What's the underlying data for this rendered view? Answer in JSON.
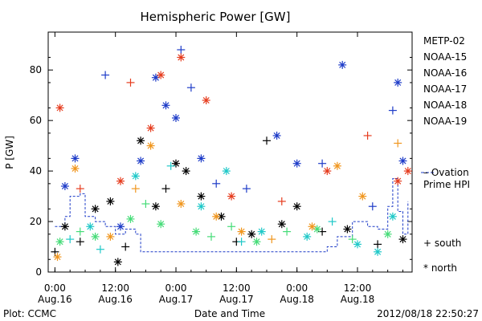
{
  "chart_data": {
    "type": "scatter",
    "title": "Hemispheric Power [GW]",
    "xlabel": "Date and Time",
    "ylabel": "P [GW]",
    "xlim": [
      "2012-08-15T22:40",
      "2012-08-18T22:50"
    ],
    "ylim": [
      0,
      95
    ],
    "y_ticks": [
      0,
      20,
      40,
      60,
      80
    ],
    "x_ticks": [
      {
        "time": "2012-08-16T00:00",
        "label": "0:00",
        "sublabel": "Aug.16"
      },
      {
        "time": "2012-08-16T12:00",
        "label": "12:00",
        "sublabel": "Aug.16"
      },
      {
        "time": "2012-08-17T00:00",
        "label": "0:00",
        "sublabel": "Aug.17"
      },
      {
        "time": "2012-08-17T12:00",
        "label": "12:00",
        "sublabel": "Aug.17"
      },
      {
        "time": "2012-08-18T00:00",
        "label": "0:00",
        "sublabel": "Aug.18"
      },
      {
        "time": "2012-08-18T12:00",
        "label": "12:00",
        "sublabel": "Aug.18"
      }
    ],
    "grid": false,
    "legend_position": "right",
    "series": [
      {
        "name": "METP-02",
        "color": "#000000",
        "points": [
          {
            "t": "2012-08-16T00:00",
            "v": 8,
            "m": "south"
          },
          {
            "t": "2012-08-16T02:00",
            "v": 18,
            "m": "north"
          },
          {
            "t": "2012-08-16T05:00",
            "v": 12,
            "m": "south"
          },
          {
            "t": "2012-08-16T08:00",
            "v": 25,
            "m": "north"
          },
          {
            "t": "2012-08-16T11:00",
            "v": 28,
            "m": "north"
          },
          {
            "t": "2012-08-16T12:30",
            "v": 4,
            "m": "north"
          },
          {
            "t": "2012-08-16T14:00",
            "v": 10,
            "m": "south"
          },
          {
            "t": "2012-08-16T17:00",
            "v": 52,
            "m": "north"
          },
          {
            "t": "2012-08-16T20:00",
            "v": 26,
            "m": "north"
          },
          {
            "t": "2012-08-16T22:00",
            "v": 33,
            "m": "south"
          },
          {
            "t": "2012-08-17T00:00",
            "v": 43,
            "m": "north"
          },
          {
            "t": "2012-08-17T02:00",
            "v": 40,
            "m": "north"
          },
          {
            "t": "2012-08-17T05:00",
            "v": 30,
            "m": "north"
          },
          {
            "t": "2012-08-17T09:00",
            "v": 22,
            "m": "north"
          },
          {
            "t": "2012-08-17T12:00",
            "v": 12,
            "m": "south"
          },
          {
            "t": "2012-08-17T15:00",
            "v": 15,
            "m": "north"
          },
          {
            "t": "2012-08-17T18:00",
            "v": 52,
            "m": "south"
          },
          {
            "t": "2012-08-17T21:00",
            "v": 19,
            "m": "north"
          },
          {
            "t": "2012-08-18T00:00",
            "v": 26,
            "m": "north"
          },
          {
            "t": "2012-08-18T05:00",
            "v": 16,
            "m": "south"
          },
          {
            "t": "2012-08-18T10:00",
            "v": 17,
            "m": "north"
          },
          {
            "t": "2012-08-18T16:00",
            "v": 11,
            "m": "south"
          },
          {
            "t": "2012-08-18T21:00",
            "v": 13,
            "m": "north"
          }
        ]
      },
      {
        "name": "NOAA-15",
        "color": "#1e3cc8",
        "points": [
          {
            "t": "2012-08-16T02:00",
            "v": 34,
            "m": "north"
          },
          {
            "t": "2012-08-16T04:00",
            "v": 45,
            "m": "north"
          },
          {
            "t": "2012-08-16T10:00",
            "v": 78,
            "m": "south"
          },
          {
            "t": "2012-08-16T13:00",
            "v": 18,
            "m": "north"
          },
          {
            "t": "2012-08-16T17:00",
            "v": 44,
            "m": "north"
          },
          {
            "t": "2012-08-16T20:00",
            "v": 77,
            "m": "north"
          },
          {
            "t": "2012-08-16T22:00",
            "v": 66,
            "m": "north"
          },
          {
            "t": "2012-08-17T00:00",
            "v": 61,
            "m": "north"
          },
          {
            "t": "2012-08-17T01:00",
            "v": 88,
            "m": "south"
          },
          {
            "t": "2012-08-17T03:00",
            "v": 73,
            "m": "south"
          },
          {
            "t": "2012-08-17T05:00",
            "v": 45,
            "m": "north"
          },
          {
            "t": "2012-08-17T08:00",
            "v": 35,
            "m": "south"
          },
          {
            "t": "2012-08-17T14:00",
            "v": 33,
            "m": "south"
          },
          {
            "t": "2012-08-17T20:00",
            "v": 54,
            "m": "north"
          },
          {
            "t": "2012-08-18T00:00",
            "v": 43,
            "m": "north"
          },
          {
            "t": "2012-08-18T05:00",
            "v": 43,
            "m": "south"
          },
          {
            "t": "2012-08-18T09:00",
            "v": 82,
            "m": "north"
          },
          {
            "t": "2012-08-18T15:00",
            "v": 26,
            "m": "south"
          },
          {
            "t": "2012-08-18T19:00",
            "v": 64,
            "m": "south"
          },
          {
            "t": "2012-08-18T20:00",
            "v": 75,
            "m": "north"
          },
          {
            "t": "2012-08-18T21:00",
            "v": 44,
            "m": "north"
          }
        ]
      },
      {
        "name": "NOAA-16",
        "color": "#1ec8c8",
        "points": [
          {
            "t": "2012-08-16T03:00",
            "v": 13,
            "m": "south"
          },
          {
            "t": "2012-08-16T07:00",
            "v": 18,
            "m": "north"
          },
          {
            "t": "2012-08-16T09:00",
            "v": 9,
            "m": "south"
          },
          {
            "t": "2012-08-16T16:00",
            "v": 38,
            "m": "north"
          },
          {
            "t": "2012-08-16T23:00",
            "v": 42,
            "m": "south"
          },
          {
            "t": "2012-08-17T05:00",
            "v": 26,
            "m": "north"
          },
          {
            "t": "2012-08-17T10:00",
            "v": 40,
            "m": "north"
          },
          {
            "t": "2012-08-17T13:00",
            "v": 12,
            "m": "south"
          },
          {
            "t": "2012-08-17T17:00",
            "v": 16,
            "m": "north"
          },
          {
            "t": "2012-08-18T02:00",
            "v": 14,
            "m": "north"
          },
          {
            "t": "2012-08-18T07:00",
            "v": 20,
            "m": "south"
          },
          {
            "t": "2012-08-18T12:00",
            "v": 11,
            "m": "north"
          },
          {
            "t": "2012-08-18T16:00",
            "v": 8,
            "m": "north"
          },
          {
            "t": "2012-08-18T19:00",
            "v": 22,
            "m": "north"
          }
        ]
      },
      {
        "name": "NOAA-17",
        "color": "#46dc78",
        "points": [
          {
            "t": "2012-08-16T01:00",
            "v": 12,
            "m": "north"
          },
          {
            "t": "2012-08-16T05:00",
            "v": 16,
            "m": "south"
          },
          {
            "t": "2012-08-16T08:00",
            "v": 14,
            "m": "north"
          },
          {
            "t": "2012-08-16T15:00",
            "v": 21,
            "m": "north"
          },
          {
            "t": "2012-08-16T18:00",
            "v": 27,
            "m": "south"
          },
          {
            "t": "2012-08-16T21:00",
            "v": 19,
            "m": "north"
          },
          {
            "t": "2012-08-17T04:00",
            "v": 16,
            "m": "north"
          },
          {
            "t": "2012-08-17T07:00",
            "v": 14,
            "m": "south"
          },
          {
            "t": "2012-08-17T11:00",
            "v": 18,
            "m": "south"
          },
          {
            "t": "2012-08-17T16:00",
            "v": 12,
            "m": "north"
          },
          {
            "t": "2012-08-17T22:00",
            "v": 16,
            "m": "south"
          },
          {
            "t": "2012-08-18T04:00",
            "v": 17,
            "m": "north"
          },
          {
            "t": "2012-08-18T11:00",
            "v": 13,
            "m": "south"
          },
          {
            "t": "2012-08-18T18:00",
            "v": 15,
            "m": "north"
          }
        ]
      },
      {
        "name": "NOAA-18",
        "color": "#f0961e",
        "points": [
          {
            "t": "2012-08-16T00:30",
            "v": 6,
            "m": "north"
          },
          {
            "t": "2012-08-16T04:00",
            "v": 41,
            "m": "north"
          },
          {
            "t": "2012-08-16T11:00",
            "v": 14,
            "m": "north"
          },
          {
            "t": "2012-08-16T16:00",
            "v": 33,
            "m": "south"
          },
          {
            "t": "2012-08-16T19:00",
            "v": 50,
            "m": "north"
          },
          {
            "t": "2012-08-17T01:00",
            "v": 27,
            "m": "north"
          },
          {
            "t": "2012-08-17T08:00",
            "v": 22,
            "m": "north"
          },
          {
            "t": "2012-08-17T13:00",
            "v": 16,
            "m": "north"
          },
          {
            "t": "2012-08-17T19:00",
            "v": 13,
            "m": "south"
          },
          {
            "t": "2012-08-18T03:00",
            "v": 18,
            "m": "north"
          },
          {
            "t": "2012-08-18T08:00",
            "v": 42,
            "m": "north"
          },
          {
            "t": "2012-08-18T13:00",
            "v": 30,
            "m": "north"
          },
          {
            "t": "2012-08-18T20:00",
            "v": 51,
            "m": "south"
          }
        ]
      },
      {
        "name": "NOAA-19",
        "color": "#e63c1e",
        "points": [
          {
            "t": "2012-08-16T01:00",
            "v": 65,
            "m": "north"
          },
          {
            "t": "2012-08-16T05:00",
            "v": 33,
            "m": "south"
          },
          {
            "t": "2012-08-16T13:00",
            "v": 36,
            "m": "north"
          },
          {
            "t": "2012-08-16T15:00",
            "v": 75,
            "m": "south"
          },
          {
            "t": "2012-08-16T19:00",
            "v": 57,
            "m": "north"
          },
          {
            "t": "2012-08-16T21:00",
            "v": 78,
            "m": "north"
          },
          {
            "t": "2012-08-17T01:00",
            "v": 85,
            "m": "north"
          },
          {
            "t": "2012-08-17T06:00",
            "v": 68,
            "m": "north"
          },
          {
            "t": "2012-08-17T11:00",
            "v": 30,
            "m": "north"
          },
          {
            "t": "2012-08-17T21:00",
            "v": 28,
            "m": "south"
          },
          {
            "t": "2012-08-18T06:00",
            "v": 40,
            "m": "north"
          },
          {
            "t": "2012-08-18T14:00",
            "v": 54,
            "m": "south"
          },
          {
            "t": "2012-08-18T20:00",
            "v": 36,
            "m": "north"
          },
          {
            "t": "2012-08-18T22:00",
            "v": 40,
            "m": "north"
          }
        ]
      }
    ],
    "ovation": {
      "name": "Ovation Prime HPI",
      "color": "#1e3cc8",
      "points": [
        {
          "t": "2012-08-16T00:00",
          "v": 18
        },
        {
          "t": "2012-08-16T02:00",
          "v": 22
        },
        {
          "t": "2012-08-16T03:00",
          "v": 30
        },
        {
          "t": "2012-08-16T05:00",
          "v": 31
        },
        {
          "t": "2012-08-16T06:00",
          "v": 22
        },
        {
          "t": "2012-08-16T08:00",
          "v": 20
        },
        {
          "t": "2012-08-16T10:00",
          "v": 18
        },
        {
          "t": "2012-08-16T12:00",
          "v": 15
        },
        {
          "t": "2012-08-16T14:00",
          "v": 17
        },
        {
          "t": "2012-08-16T16:00",
          "v": 15
        },
        {
          "t": "2012-08-16T17:00",
          "v": 8
        },
        {
          "t": "2012-08-17T00:00",
          "v": 8
        },
        {
          "t": "2012-08-17T12:00",
          "v": 8
        },
        {
          "t": "2012-08-18T00:00",
          "v": 8
        },
        {
          "t": "2012-08-18T06:00",
          "v": 10
        },
        {
          "t": "2012-08-18T08:00",
          "v": 14
        },
        {
          "t": "2012-08-18T11:00",
          "v": 20
        },
        {
          "t": "2012-08-18T14:00",
          "v": 18
        },
        {
          "t": "2012-08-18T16:00",
          "v": 17
        },
        {
          "t": "2012-08-18T18:00",
          "v": 26
        },
        {
          "t": "2012-08-18T19:00",
          "v": 37
        },
        {
          "t": "2012-08-18T20:00",
          "v": 24
        },
        {
          "t": "2012-08-18T21:00",
          "v": 15
        },
        {
          "t": "2012-08-18T22:00",
          "v": 28
        }
      ]
    },
    "hemisphere_key": [
      {
        "symbol": "+",
        "label": "south"
      },
      {
        "symbol": "*",
        "label": "north"
      }
    ]
  },
  "footer": {
    "plot_label": "Plot: CCMC",
    "timestamp": "2012/08/18 22:50:27"
  }
}
